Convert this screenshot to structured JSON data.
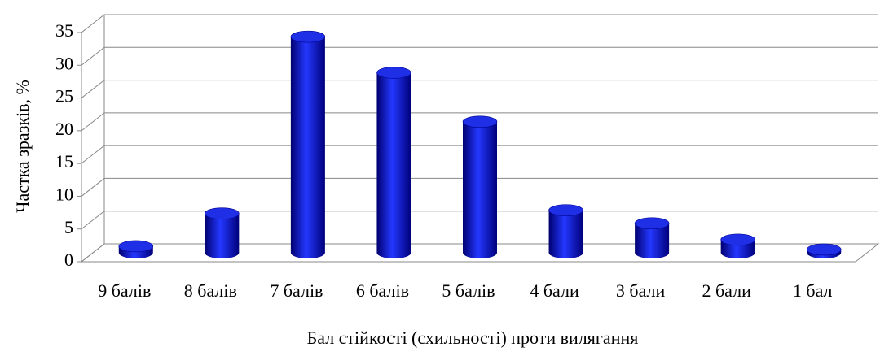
{
  "chart_data": {
    "type": "bar3d",
    "y_label": "Частка зразків, %",
    "x_label": "Бал стійкості (схильності) проти вилягання",
    "categories": [
      "9 балів",
      "8 балів",
      "7 балів",
      "6 балів",
      "5 балів",
      "4 бали",
      "3 бали",
      "2 бали",
      "1 бал"
    ],
    "values": [
      1,
      6,
      33,
      27.5,
      20,
      6.5,
      4.5,
      2,
      0.5
    ],
    "color": "#1a1acc",
    "ylim": [
      0,
      35
    ],
    "yticks": [
      0,
      5,
      10,
      15,
      20,
      25,
      30,
      35
    ],
    "grid": true
  }
}
